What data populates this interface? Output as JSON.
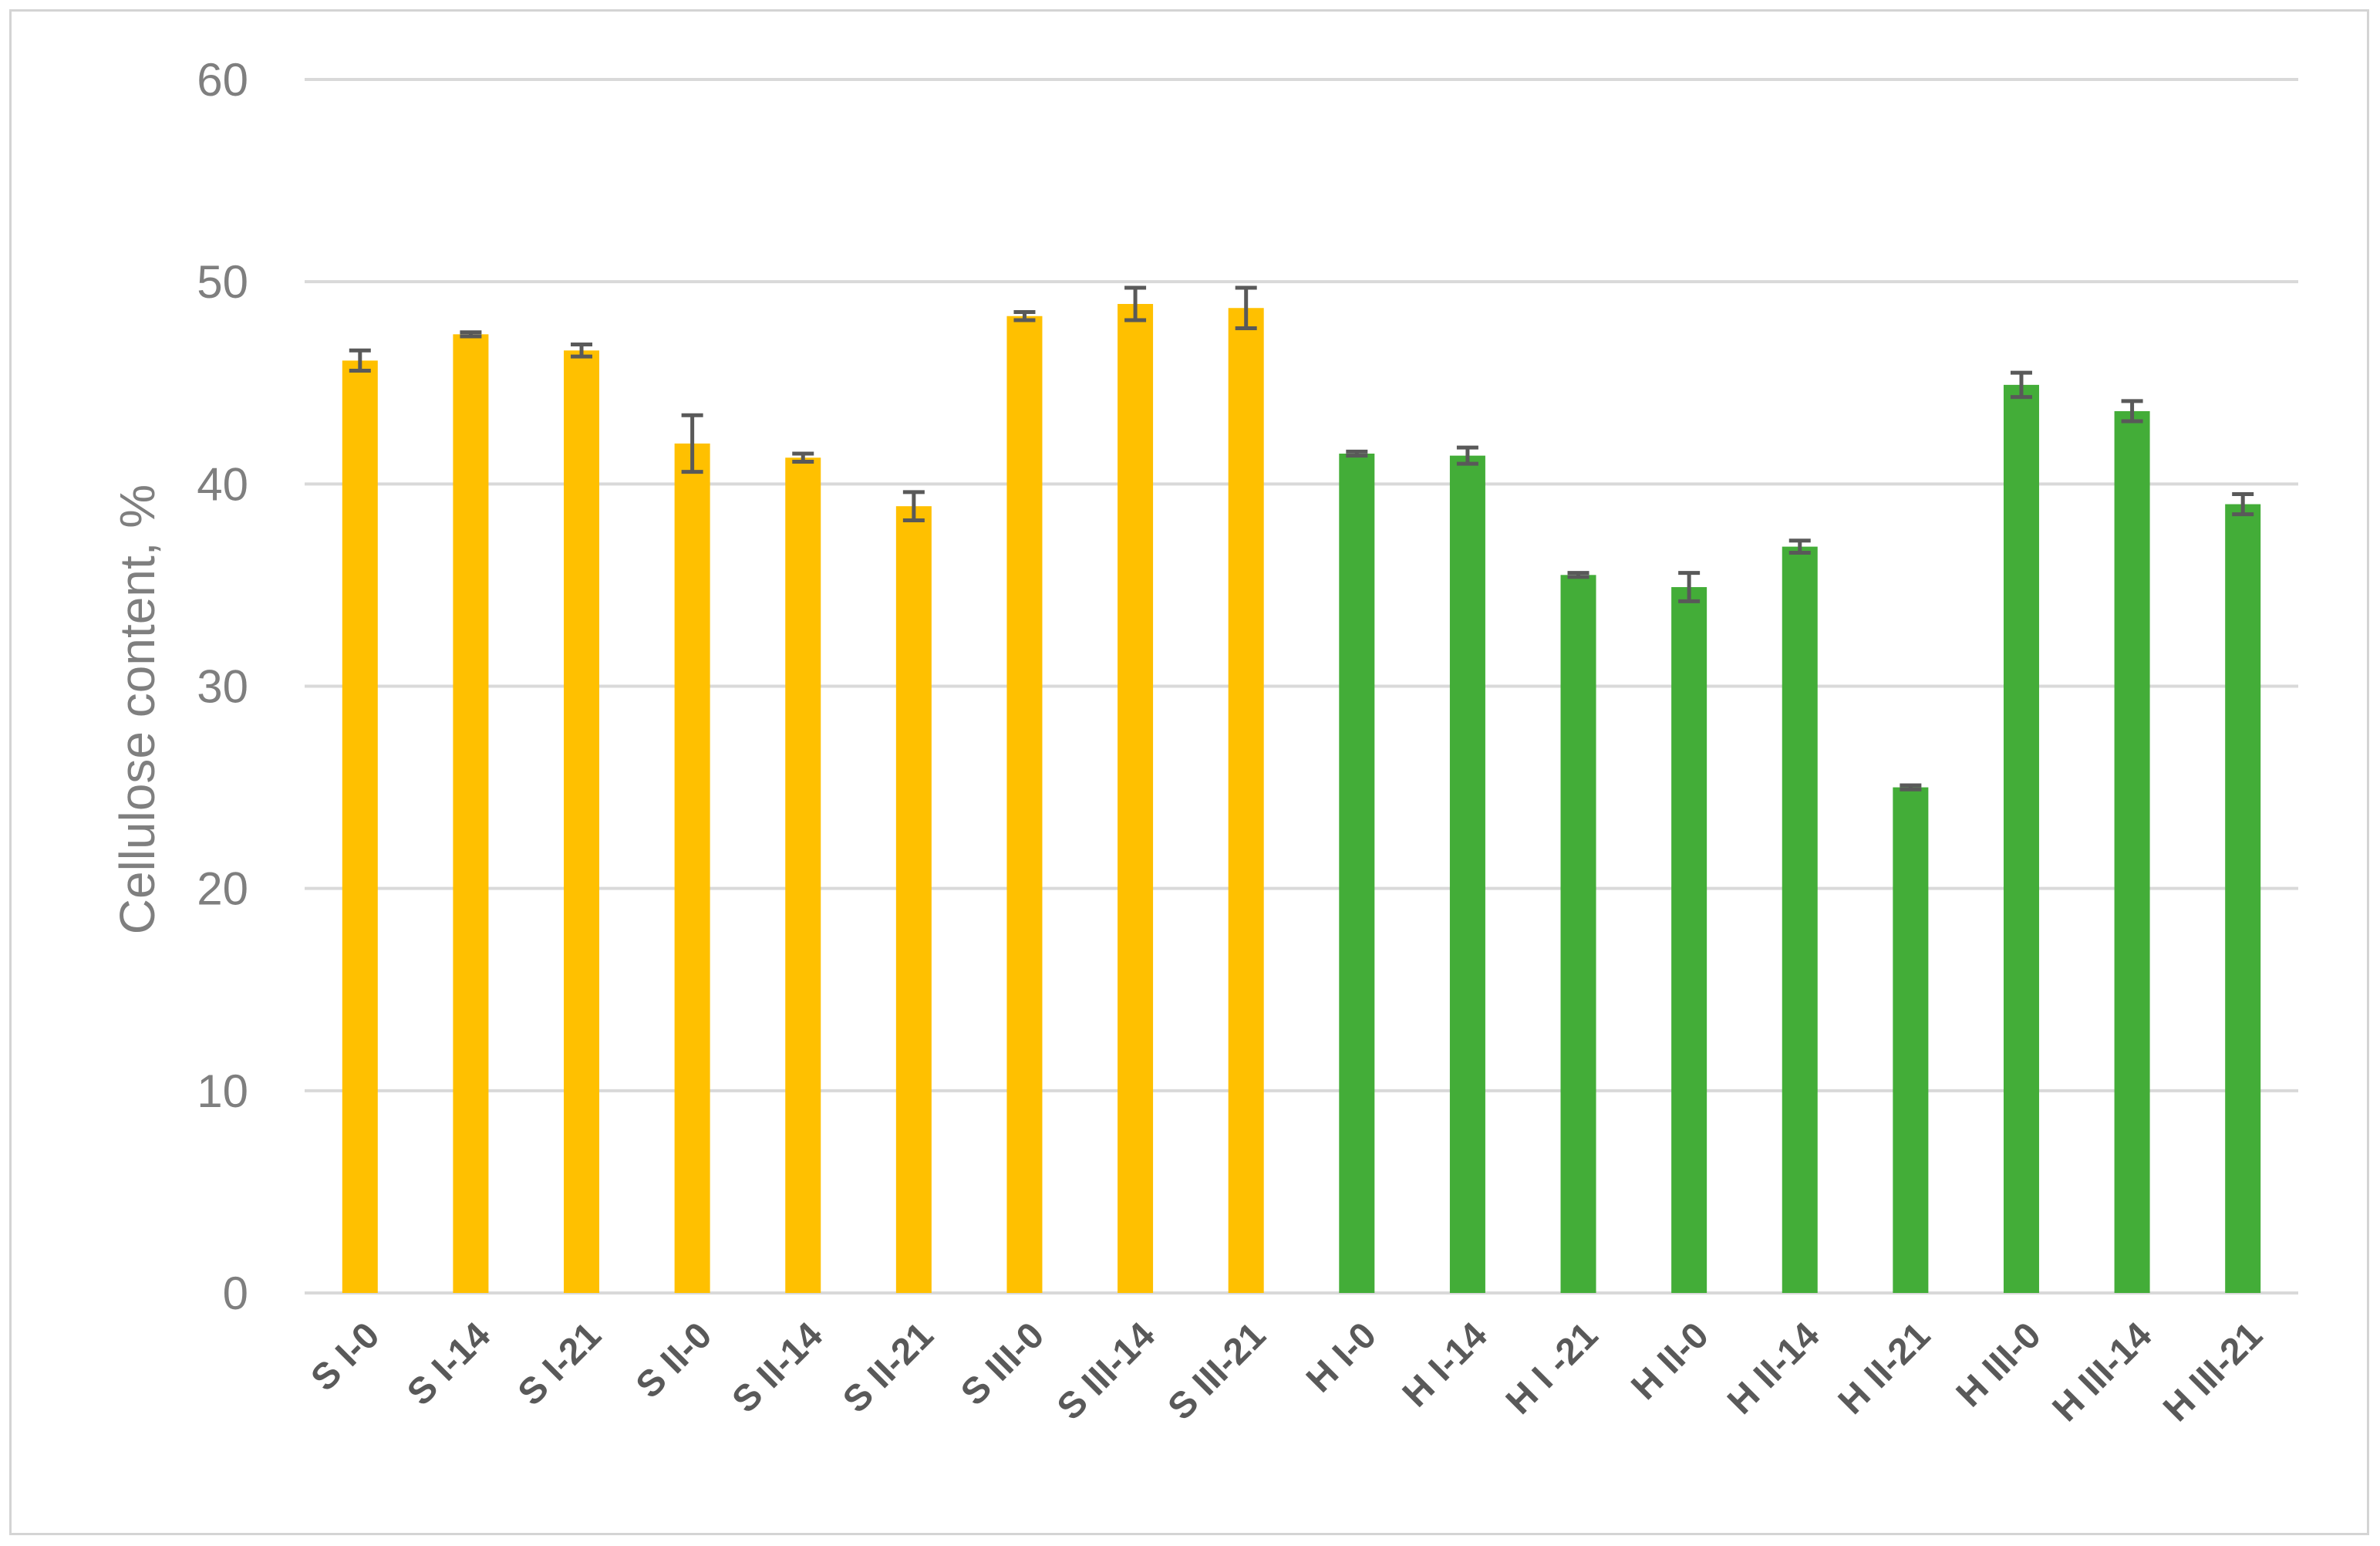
{
  "chart_data": {
    "type": "bar",
    "title": "",
    "xlabel": "",
    "ylabel": "Cellulose content, %",
    "ylim": [
      0,
      60
    ],
    "yticks": [
      0,
      10,
      20,
      30,
      40,
      50,
      60
    ],
    "grid": true,
    "legend": "none",
    "categories": [
      "S I-0",
      "S I-14",
      "S I-21",
      "S II-0",
      "S II-14",
      "S II-21",
      "S III-0",
      "S III-14",
      "S III-21",
      "H I-0",
      "H I-14",
      "H I -21",
      "H II-0",
      "H II-14",
      "H II-21",
      "H III-0",
      "H III-14",
      "H III-21"
    ],
    "values": [
      46.1,
      47.4,
      46.6,
      42.0,
      41.3,
      38.9,
      48.3,
      48.9,
      48.7,
      41.5,
      41.4,
      35.5,
      34.9,
      36.9,
      25.0,
      44.9,
      43.6,
      39.0
    ],
    "errors": [
      0.5,
      0.1,
      0.3,
      1.4,
      0.2,
      0.7,
      0.2,
      0.8,
      1.0,
      0.1,
      0.4,
      0.1,
      0.7,
      0.3,
      0.1,
      0.6,
      0.5,
      0.5
    ],
    "bar_colors": [
      "#ffc000",
      "#ffc000",
      "#ffc000",
      "#ffc000",
      "#ffc000",
      "#ffc000",
      "#ffc000",
      "#ffc000",
      "#ffc000",
      "#43ad38",
      "#43ad38",
      "#43ad38",
      "#43ad38",
      "#43ad38",
      "#43ad38",
      "#43ad38",
      "#43ad38",
      "#43ad38"
    ],
    "error_bar_color": "#595959",
    "gridline_color": "#d9d9d9"
  }
}
